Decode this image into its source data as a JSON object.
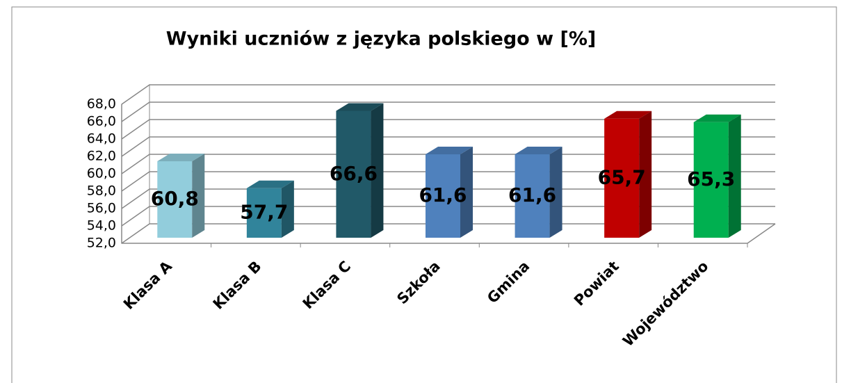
{
  "chart_data": {
    "type": "bar3d",
    "title": "Wyniki uczniów z języka polskiego  w [%]",
    "categories": [
      "Klasa A",
      "Klasa B",
      "Klasa C",
      "Szkoła",
      "Gmina",
      "Powiat",
      "Województwo"
    ],
    "values": [
      60.8,
      57.7,
      66.6,
      61.6,
      61.6,
      65.7,
      65.3
    ],
    "value_labels": [
      "60,8",
      "57,7",
      "66,6",
      "61,6",
      "61,6",
      "65,7",
      "65,3"
    ],
    "colors": [
      "#92cddc",
      "#31849b",
      "#215968",
      "#4f81bd",
      "#4f81bd",
      "#c00000",
      "#00b050"
    ],
    "ylim": [
      52,
      68
    ],
    "yticks": [
      {
        "value": 52,
        "label": "52,0"
      },
      {
        "value": 54,
        "label": "54,0"
      },
      {
        "value": 56,
        "label": "56,0"
      },
      {
        "value": 58,
        "label": "58,0"
      },
      {
        "value": 60,
        "label": "60,0"
      },
      {
        "value": 62,
        "label": "62,0"
      },
      {
        "value": 64,
        "label": "64,0"
      },
      {
        "value": 66,
        "label": "66,0"
      },
      {
        "value": 68,
        "label": "68,0"
      }
    ],
    "grid": true
  }
}
